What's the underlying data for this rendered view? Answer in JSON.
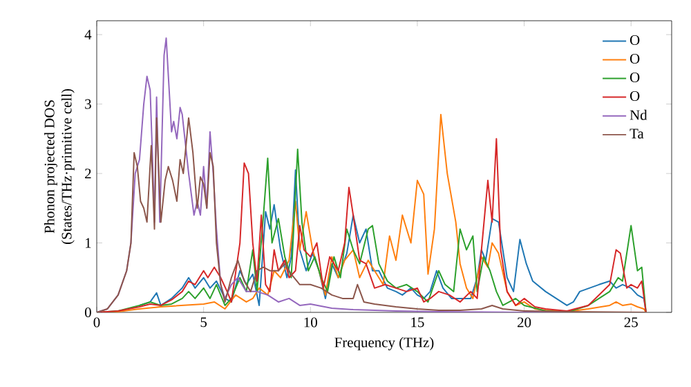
{
  "chart_data": {
    "type": "line",
    "xlabel": "Frequency (THz)",
    "ylabel": "Phonon projected DOS\n(States/THz·primitive cell)",
    "xlim": [
      0,
      26.9
    ],
    "ylim": [
      0,
      4.2
    ],
    "xticks": [
      0,
      5,
      10,
      15,
      20,
      25
    ],
    "yticks": [
      0,
      1,
      2,
      3,
      4
    ],
    "legend": "top right",
    "grid": false,
    "marker": "none",
    "line_style": "solid",
    "series": [
      {
        "name": "O",
        "color": "#1f77b4",
        "x": [
          2,
          2.5,
          2.8,
          3,
          3.5,
          4,
          4.3,
          4.6,
          5,
          5.3,
          5.6,
          6,
          6.3,
          6.7,
          7,
          7.3,
          7.6,
          7.9,
          8.1,
          8.3,
          8.6,
          8.9,
          9.1,
          9.3,
          9.5,
          9.8,
          10.1,
          10.4,
          10.7,
          11,
          11.3,
          11.7,
          12,
          12.3,
          12.6,
          12.9,
          13.2,
          13.6,
          14,
          14.3,
          14.7,
          15,
          15.3,
          15.6,
          15.9,
          16.2,
          16.6,
          17,
          17.5,
          17.8,
          18,
          18.2,
          18.5,
          18.8,
          19.2,
          19.5,
          19.8,
          20.1,
          20.4,
          21,
          22,
          22.3,
          22.6,
          23.5,
          24,
          24.3,
          24.6,
          25,
          25.3,
          25.6,
          25.7
        ],
        "values": [
          0.1,
          0.15,
          0.28,
          0.1,
          0.2,
          0.35,
          0.5,
          0.35,
          0.5,
          0.35,
          0.45,
          0.2,
          0.15,
          0.6,
          0.4,
          0.55,
          0.1,
          1.45,
          1.2,
          1.55,
          0.9,
          0.5,
          0.8,
          2.05,
          0.9,
          0.6,
          0.85,
          0.6,
          0.2,
          0.7,
          0.5,
          0.85,
          1.4,
          1.0,
          1.2,
          0.6,
          0.6,
          0.35,
          0.3,
          0.25,
          0.35,
          0.25,
          0.2,
          0.3,
          0.6,
          0.35,
          0.2,
          0.2,
          0.2,
          0.5,
          0.9,
          0.75,
          1.35,
          1.3,
          0.5,
          0.3,
          1.05,
          0.7,
          0.45,
          0.3,
          0.1,
          0.15,
          0.3,
          0.4,
          0.45,
          0.35,
          0.4,
          0.35,
          0.25,
          0.2,
          0
        ]
      },
      {
        "name": "O",
        "color": "#ff7f0e",
        "x": [
          0,
          1,
          2,
          3,
          4,
          5,
          5.5,
          6,
          6.5,
          7,
          7.3,
          7.6,
          8,
          8.3,
          8.6,
          9,
          9.3,
          9.5,
          9.8,
          10.1,
          10.4,
          10.7,
          11,
          11.3,
          11.6,
          12,
          12.3,
          12.7,
          13,
          13.4,
          13.7,
          14,
          14.3,
          14.7,
          15,
          15.3,
          15.5,
          15.8,
          16.1,
          16.4,
          16.8,
          17,
          17.3,
          17.6,
          18,
          18.3,
          18.5,
          18.8,
          19.2,
          19.6,
          20,
          20.5,
          21,
          22,
          23,
          24,
          24.3,
          24.6,
          25,
          25.3,
          25.6,
          25.7
        ],
        "values": [
          0,
          0.01,
          0.05,
          0.08,
          0.1,
          0.12,
          0.15,
          0.05,
          0.25,
          0.15,
          0.2,
          0.35,
          0.25,
          0.6,
          0.5,
          0.75,
          1.6,
          0.9,
          1.45,
          0.9,
          0.6,
          0.25,
          0.8,
          0.5,
          0.75,
          0.9,
          0.5,
          0.75,
          0.6,
          0.4,
          1.1,
          0.75,
          1.4,
          1.0,
          1.9,
          1.7,
          0.55,
          1.2,
          2.85,
          2.0,
          1.3,
          0.7,
          0.35,
          0.2,
          0.8,
          0.65,
          1.0,
          0.85,
          0.3,
          0.1,
          0.15,
          0.05,
          0.03,
          0.01,
          0.05,
          0.1,
          0.15,
          0.1,
          0.12,
          0.08,
          0.05,
          0
        ]
      },
      {
        "name": "O",
        "color": "#2ca02c",
        "x": [
          0,
          1,
          2,
          2.5,
          3,
          3.5,
          4,
          4.3,
          4.6,
          5,
          5.3,
          5.6,
          6,
          6.3,
          6.7,
          7,
          7.3,
          7.5,
          7.8,
          8,
          8.2,
          8.5,
          8.8,
          9.1,
          9.4,
          9.6,
          9.9,
          10.2,
          10.5,
          10.8,
          11.1,
          11.4,
          11.7,
          12,
          12.3,
          12.7,
          12.9,
          13.2,
          13.6,
          14,
          14.5,
          15,
          15.5,
          16,
          16.3,
          16.7,
          17,
          17.3,
          17.6,
          17.8,
          18.1,
          18.4,
          18.7,
          19,
          19.6,
          20,
          21,
          22,
          23,
          24,
          24.4,
          24.6,
          25,
          25.3,
          25.5,
          25.7
        ],
        "values": [
          0,
          0.02,
          0.1,
          0.15,
          0.1,
          0.12,
          0.2,
          0.3,
          0.2,
          0.35,
          0.2,
          0.4,
          0.1,
          0.2,
          0.5,
          0.3,
          0.9,
          0.3,
          1.4,
          2.22,
          1.0,
          1.35,
          0.8,
          0.5,
          2.35,
          1.3,
          0.6,
          0.8,
          0.5,
          0.3,
          0.8,
          0.5,
          1.2,
          0.9,
          0.7,
          1.2,
          1.25,
          0.7,
          0.45,
          0.35,
          0.4,
          0.3,
          0.15,
          0.6,
          0.4,
          0.3,
          1.2,
          0.9,
          1.1,
          0.3,
          0.8,
          0.6,
          0.3,
          0.1,
          0.2,
          0.1,
          0.02,
          0,
          0.1,
          0.3,
          0.5,
          0.45,
          1.25,
          0.6,
          0.65,
          0
        ]
      },
      {
        "name": "O",
        "color": "#d62728",
        "x": [
          0,
          1,
          2,
          2.5,
          3,
          3.5,
          4,
          4.3,
          4.6,
          5,
          5.2,
          5.5,
          5.8,
          6.1,
          6.3,
          6.7,
          6.9,
          7.1,
          7.3,
          7.5,
          7.7,
          7.9,
          8.1,
          8.3,
          8.5,
          8.8,
          9,
          9.3,
          9.5,
          9.7,
          10,
          10.3,
          10.6,
          10.9,
          11.3,
          11.6,
          11.8,
          12,
          12.3,
          12.6,
          13,
          13.5,
          14,
          14.5,
          15,
          15.3,
          15.6,
          16,
          16.5,
          17,
          17.5,
          17.8,
          18,
          18.3,
          18.5,
          18.7,
          18.9,
          19.2,
          19.6,
          20,
          20.5,
          21,
          22,
          23,
          24,
          24.3,
          24.5,
          24.8,
          25,
          25.3,
          25.5,
          25.7
        ],
        "values": [
          0,
          0.02,
          0.08,
          0.12,
          0.1,
          0.18,
          0.3,
          0.45,
          0.4,
          0.6,
          0.5,
          0.65,
          0.5,
          0.3,
          0.15,
          1.0,
          2.15,
          2.0,
          1.0,
          0.45,
          1.4,
          0.4,
          0.3,
          0.9,
          0.6,
          0.75,
          0.5,
          0.6,
          1.25,
          0.9,
          0.8,
          1.0,
          0.35,
          0.8,
          0.6,
          1.0,
          1.8,
          1.4,
          0.75,
          0.7,
          0.35,
          0.4,
          0.35,
          0.3,
          0.35,
          0.15,
          0.2,
          0.3,
          0.25,
          0.15,
          0.3,
          0.2,
          0.9,
          1.9,
          1.3,
          2.5,
          0.9,
          0.3,
          0.1,
          0.2,
          0.08,
          0.05,
          0.02,
          0.1,
          0.4,
          0.9,
          0.85,
          0.35,
          0.4,
          0.35,
          0.45,
          0
        ]
      },
      {
        "name": "Nd",
        "color": "#9467bd",
        "x": [
          0,
          0.5,
          1,
          1.4,
          1.6,
          1.8,
          2,
          2.2,
          2.35,
          2.5,
          2.6,
          2.7,
          2.8,
          2.95,
          3.15,
          3.25,
          3.5,
          3.6,
          3.75,
          3.9,
          4,
          4.3,
          4.55,
          4.7,
          4.85,
          5,
          5.15,
          5.3,
          5.45,
          5.6,
          5.8,
          6,
          6.3,
          6.6,
          7,
          7.5,
          8,
          8.5,
          9,
          9.5,
          10,
          11,
          12,
          13,
          14,
          16,
          20,
          25.7
        ],
        "values": [
          0,
          0.05,
          0.25,
          0.6,
          1.0,
          2.0,
          2.2,
          3.0,
          3.4,
          3.2,
          2.3,
          1.3,
          3.1,
          1.3,
          3.7,
          3.95,
          2.6,
          2.75,
          2.5,
          2.95,
          2.85,
          2.0,
          1.4,
          1.6,
          1.4,
          2.1,
          1.5,
          2.6,
          2.0,
          1.2,
          0.4,
          0.2,
          0.4,
          0.5,
          0.3,
          0.3,
          0.25,
          0.15,
          0.2,
          0.1,
          0.12,
          0.06,
          0.04,
          0.03,
          0.02,
          0.01,
          0,
          0
        ]
      },
      {
        "name": "Ta",
        "color": "#8c564b",
        "x": [
          0,
          0.5,
          1,
          1.4,
          1.6,
          1.75,
          1.9,
          2.05,
          2.2,
          2.35,
          2.55,
          2.7,
          2.8,
          3,
          3.2,
          3.35,
          3.55,
          3.75,
          3.9,
          4.05,
          4.3,
          4.5,
          4.7,
          4.85,
          5,
          5.15,
          5.3,
          5.45,
          5.6,
          5.8,
          6,
          6.3,
          6.6,
          6.9,
          7.2,
          7.5,
          7.8,
          8.1,
          8.5,
          8.8,
          9.1,
          9.5,
          10,
          10.5,
          11,
          11.5,
          12,
          12.2,
          12.5,
          13,
          14,
          15,
          16,
          17,
          18,
          18.5,
          19,
          20,
          22,
          25.7
        ],
        "values": [
          0,
          0.05,
          0.25,
          0.6,
          1.0,
          2.3,
          2.1,
          1.6,
          1.5,
          1.3,
          2.4,
          1.2,
          2.8,
          1.3,
          1.9,
          2.1,
          1.9,
          1.6,
          2.2,
          2.0,
          2.8,
          2.3,
          1.5,
          1.95,
          1.85,
          1.5,
          2.3,
          2.1,
          1.0,
          0.4,
          0.15,
          0.5,
          0.75,
          0.45,
          0.3,
          0.6,
          0.65,
          0.6,
          0.6,
          0.7,
          0.55,
          0.4,
          0.4,
          0.35,
          0.25,
          0.2,
          0.2,
          0.4,
          0.15,
          0.12,
          0.08,
          0.05,
          0.03,
          0.03,
          0.05,
          0.1,
          0.05,
          0.02,
          0.01,
          0
        ]
      }
    ]
  }
}
